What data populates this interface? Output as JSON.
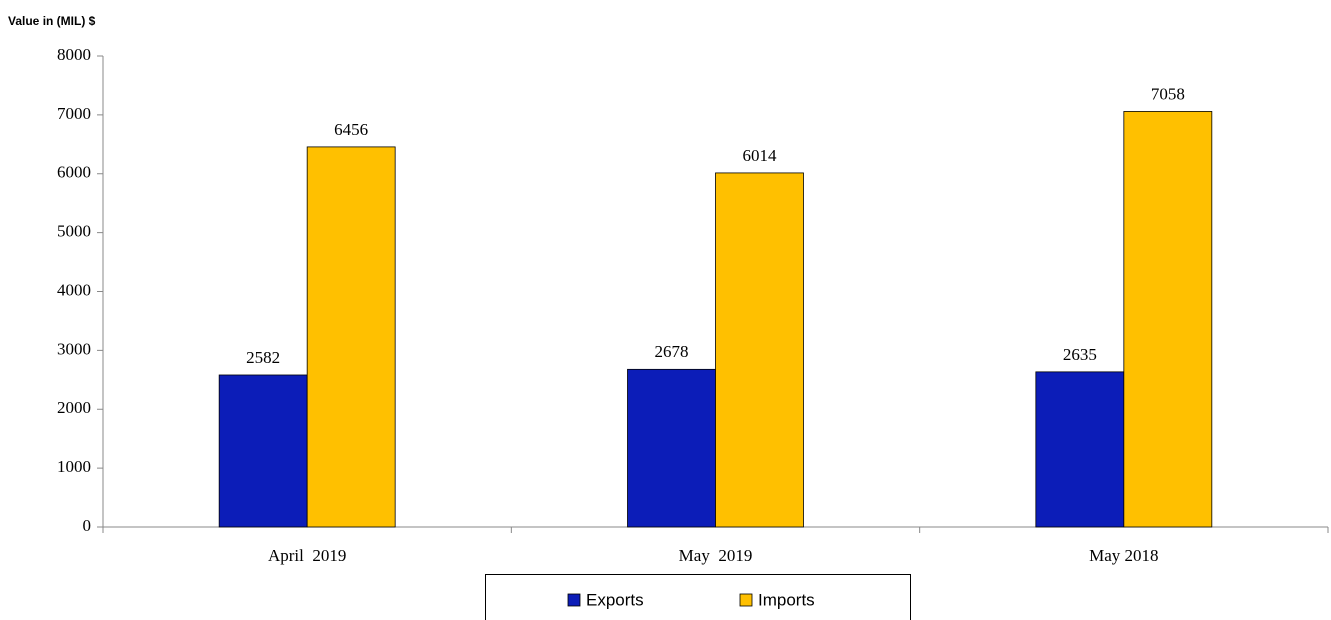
{
  "chart_data": {
    "type": "bar",
    "y_label": "Value in (MIL) $",
    "categories": [
      "April  2019",
      "May  2019",
      "May 2018"
    ],
    "series": [
      {
        "name": "Exports",
        "color": "#0c1db8",
        "values": [
          2582,
          2678,
          2635
        ]
      },
      {
        "name": "Imports",
        "color": "#ffc000",
        "values": [
          6456,
          6014,
          7058
        ]
      }
    ],
    "ylim": [
      0,
      8000
    ],
    "yticks": [
      0,
      1000,
      2000,
      3000,
      4000,
      5000,
      6000,
      7000,
      8000
    ],
    "legend": "bottom"
  }
}
